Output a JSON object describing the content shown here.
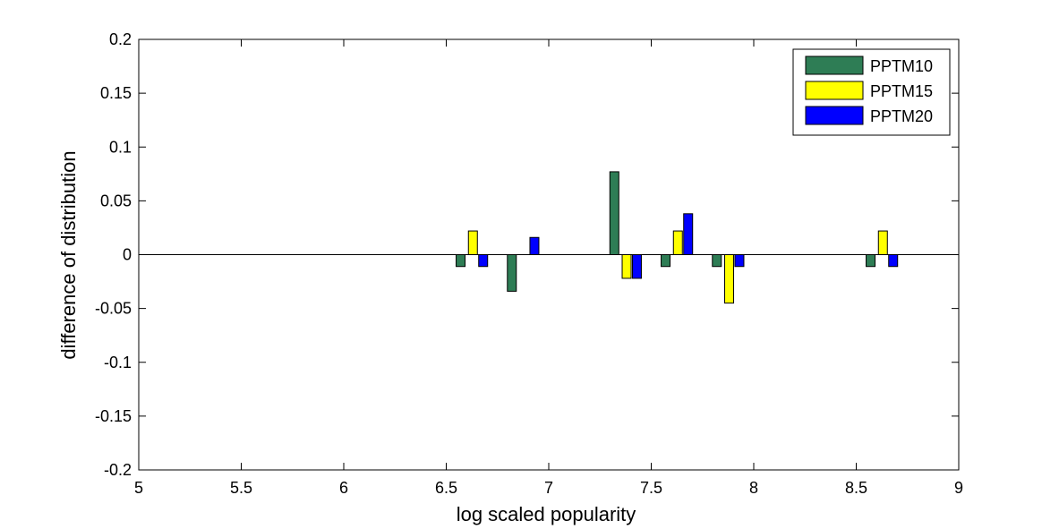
{
  "chart_data": {
    "type": "bar",
    "xlabel": "log scaled popularity",
    "ylabel": "difference of distribution",
    "xlim": [
      5,
      9
    ],
    "ylim": [
      -0.2,
      0.2
    ],
    "xticks": [
      5,
      5.5,
      6,
      6.5,
      7,
      7.5,
      8,
      8.5,
      9
    ],
    "xtick_labels": [
      "5",
      "5.5",
      "6",
      "6.5",
      "7",
      "7.5",
      "8",
      "8.5",
      "9"
    ],
    "yticks": [
      0.2,
      0.15,
      0.1,
      0.05,
      0,
      -0.05,
      -0.1,
      -0.15,
      -0.2
    ],
    "ytick_labels": [
      "0.2",
      "0.15",
      "0.1",
      "0.05",
      "0",
      "-0.05",
      "-0.1",
      "-0.15",
      "-0.2"
    ],
    "grid": false,
    "legend_position": "top-right",
    "series": [
      {
        "name": "PPTM10",
        "color": "#2e7d55",
        "points": [
          {
            "x": 6.57,
            "y": -0.011
          },
          {
            "x": 6.82,
            "y": -0.034
          },
          {
            "x": 7.32,
            "y": 0.077
          },
          {
            "x": 7.57,
            "y": -0.011
          },
          {
            "x": 7.82,
            "y": -0.011
          },
          {
            "x": 8.57,
            "y": -0.011
          }
        ]
      },
      {
        "name": "PPTM15",
        "color": "#ffff00",
        "points": [
          {
            "x": 6.63,
            "y": 0.022
          },
          {
            "x": 7.38,
            "y": -0.022
          },
          {
            "x": 7.63,
            "y": 0.022
          },
          {
            "x": 7.88,
            "y": -0.045
          },
          {
            "x": 8.63,
            "y": 0.022
          }
        ]
      },
      {
        "name": "PPTM20",
        "color": "#0000ff",
        "points": [
          {
            "x": 6.68,
            "y": -0.011
          },
          {
            "x": 6.93,
            "y": 0.016
          },
          {
            "x": 7.43,
            "y": -0.022
          },
          {
            "x": 7.68,
            "y": 0.038
          },
          {
            "x": 7.93,
            "y": -0.011
          },
          {
            "x": 8.68,
            "y": -0.011
          }
        ]
      }
    ]
  }
}
